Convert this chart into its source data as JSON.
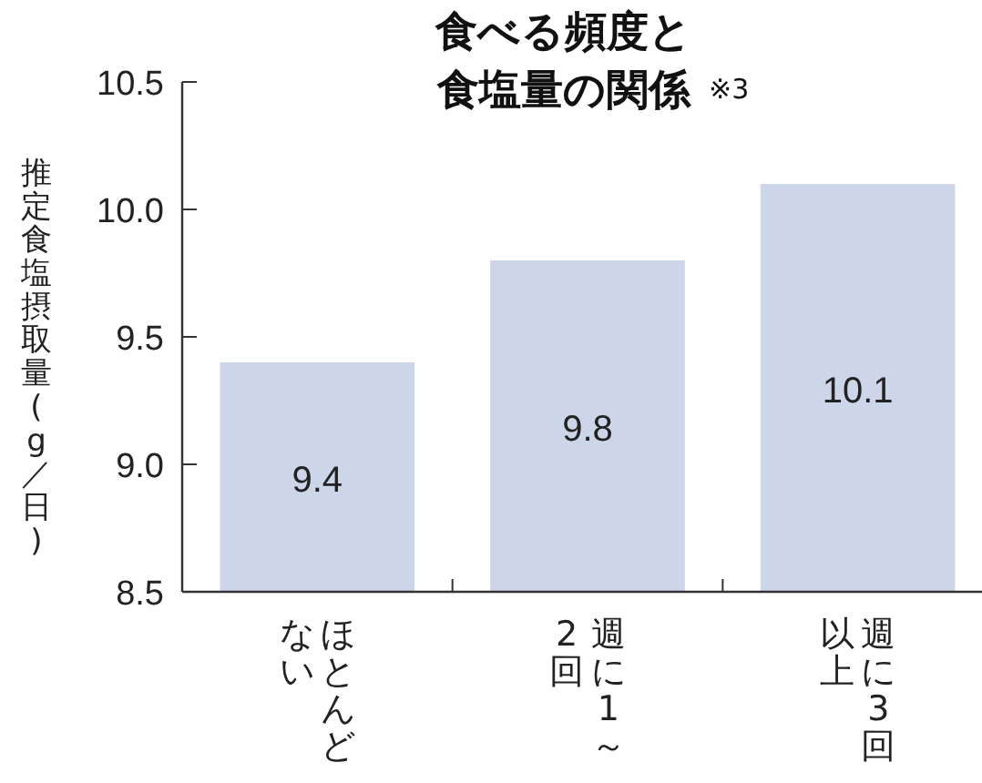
{
  "chart_data": {
    "type": "bar",
    "title": "食べる頻度と食塩量の関係",
    "annotations": [
      "※3"
    ],
    "ylabel": "推定食塩摂取量(g／日)",
    "categories": [
      "ほとんどない",
      "週に1～2回",
      "週に3回以上"
    ],
    "values": [
      9.4,
      9.8,
      10.1
    ],
    "color": "#cdd5e8",
    "data_labels": true,
    "ylim": [
      8.5,
      10.5
    ],
    "yticks": [
      {
        "value": 8.5,
        "label": "8.5"
      },
      {
        "value": 9.0,
        "label": "9.0"
      },
      {
        "value": 9.5,
        "label": "9.5"
      },
      {
        "value": 10.0,
        "label": "10.0"
      },
      {
        "value": 10.5,
        "label": "10.5"
      }
    ]
  }
}
